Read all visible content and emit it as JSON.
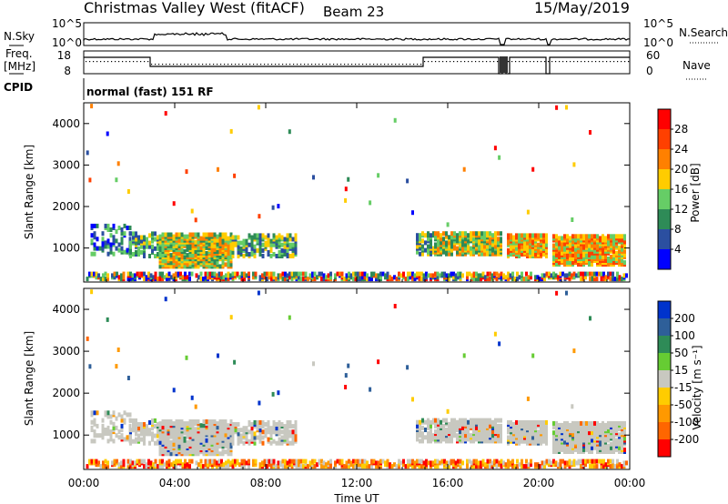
{
  "header": {
    "station": "Christmas Valley West (fitACF)",
    "beam": "Beam 23",
    "date": "15/May/2019"
  },
  "top_panels": {
    "nsky_label": "N.Sky",
    "nsearch_label": "N.Search",
    "nsky_ticks": [
      "10^5",
      "10^0"
    ],
    "nsearch_ticks": [
      "10^5",
      "10^0"
    ],
    "freq_label_1": "Freq.",
    "freq_label_2": "[MHz]",
    "freq_ticks": [
      "18",
      "8"
    ],
    "nave_label": "Nave",
    "nave_ticks": [
      "60",
      "0"
    ],
    "cpid_label": "CPID",
    "cpid_text": "normal (fast) 151 RF"
  },
  "chart_data": [
    {
      "type": "heatmap",
      "name": "power",
      "ylabel": "Slant Range [km]",
      "yticks": [
        1000,
        2000,
        3000,
        4000
      ],
      "ylim": [
        180,
        4500
      ],
      "xlim": [
        0,
        24
      ],
      "colorbar": {
        "label": "Power [dB]",
        "ticks": [
          4,
          8,
          12,
          16,
          20,
          24,
          28
        ],
        "colors": [
          "#0000ff",
          "#2b4fa0",
          "#2e8b57",
          "#66cd66",
          "#ffcc00",
          "#ff8000",
          "#ff4000",
          "#ff0000"
        ]
      }
    },
    {
      "type": "heatmap",
      "name": "velocity",
      "ylabel": "Slant Range [km]",
      "yticks": [
        1000,
        2000,
        3000,
        4000
      ],
      "ylim": [
        180,
        4500
      ],
      "xlim": [
        0,
        24
      ],
      "colorbar": {
        "label": "Velocity [m s⁻¹]",
        "ticks": [
          200,
          100,
          50,
          15,
          -15,
          -50,
          -100,
          -200
        ],
        "colors": [
          "#0033cc",
          "#2e5f99",
          "#2e8b57",
          "#66cc33",
          "#c8c8c0",
          "#ffcc00",
          "#ff9900",
          "#ff6600",
          "#ff0000"
        ]
      }
    }
  ],
  "xaxis": {
    "label": "Time UT",
    "ticks": [
      "00:00",
      "04:00",
      "08:00",
      "12:00",
      "16:00",
      "20:00",
      "00:00"
    ]
  }
}
